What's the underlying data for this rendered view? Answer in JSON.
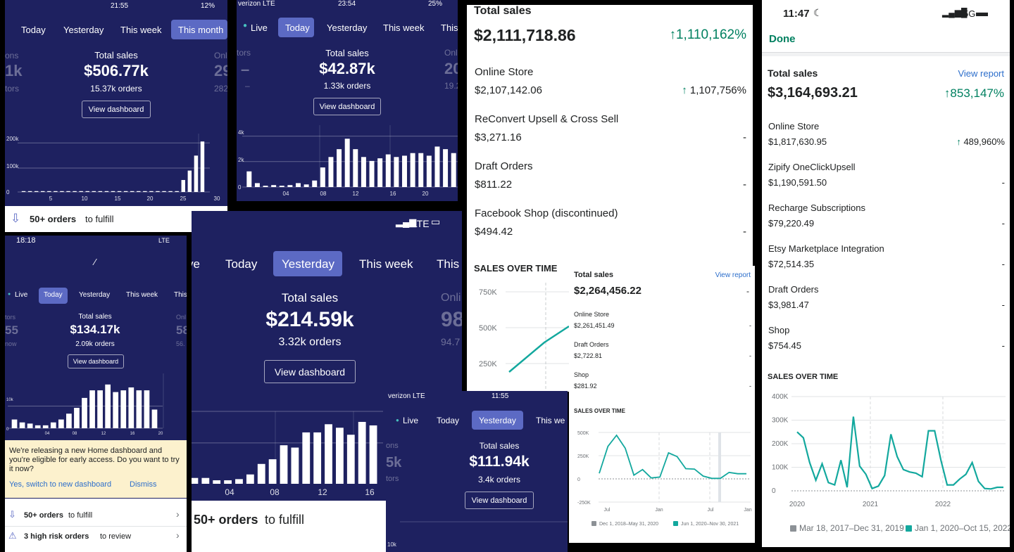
{
  "p1": {
    "status_time": "21:55",
    "status_battery": "12%",
    "tabs": [
      "Today",
      "Yesterday",
      "This week",
      "This month"
    ],
    "left_label": "ons",
    "left_value": "1k",
    "left_sub": "tors",
    "title": "Total sales",
    "value": "$506.77k",
    "orders": "15.37k orders",
    "right_label": "Onli",
    "right_value": "29",
    "right_sub": "282",
    "button": "View dashboard",
    "yticks": [
      "200k",
      "100k",
      "0"
    ],
    "xticks": [
      "5",
      "10",
      "15",
      "20",
      "25",
      "30"
    ],
    "bars_k": [
      0.4,
      0.4,
      0.4,
      0.4,
      0.4,
      0.4,
      0.4,
      0.4,
      0.4,
      0.4,
      0.4,
      0.4,
      0.4,
      0.4,
      0.4,
      0.4,
      0.4,
      0.4,
      0.4,
      0.4,
      0.4,
      0.4,
      0.4,
      0.4,
      2,
      28,
      50,
      85,
      118
    ],
    "fulfill_bold": "50+ orders",
    "fulfill_rest": "to fulfill"
  },
  "p2": {
    "status_carrier": "verizon  LTE",
    "status_time": "23:54",
    "status_battery": "25%",
    "tabs": [
      "Live",
      "Today",
      "Yesterday",
      "This week",
      "This"
    ],
    "left_label": "tors",
    "left_value": "–",
    "left_sub": "–",
    "title": "Total sales",
    "value": "$42.87k",
    "orders": "1.33k orders",
    "right_label": "Onl",
    "right_value": "20",
    "right_sub": "19.2",
    "button": "View dashboard",
    "yticks": [
      "4k",
      "2k",
      "0"
    ],
    "xticks": [
      "04",
      "08",
      "12",
      "16",
      "20"
    ],
    "bars": [
      1.2,
      0.3,
      0.1,
      0.15,
      0.1,
      0.15,
      0.3,
      0.2,
      0.5,
      1.5,
      2.3,
      2.9,
      3.7,
      2.9,
      2.3,
      2.0,
      2.2,
      2.5,
      2.3,
      2.4,
      2.6,
      2.6,
      2.4,
      3.1,
      2.9,
      2.6
    ]
  },
  "p3": {
    "status_time": "18:18",
    "status_net": "LTE",
    "tabs": [
      "Live",
      "Today",
      "Yesterday",
      "This week",
      "This"
    ],
    "left_label": "tors",
    "left_value": "55",
    "left_sub": "now",
    "title": "Total sales",
    "value": "$134.17k",
    "orders": "2.09k orders",
    "right_label": "Onl",
    "right_value": "58",
    "right_sub": "56.",
    "button": "View dashboard",
    "yticks": [
      "10k",
      "0"
    ],
    "xticks": [
      "04",
      "08",
      "12",
      "16",
      "20"
    ],
    "bars": [
      1.5,
      1,
      0.8,
      0.5,
      0.5,
      1,
      1.5,
      2.5,
      3.5,
      5.2,
      6.5,
      6.5,
      7.5,
      6.2,
      6.5,
      7,
      6.5,
      6.5,
      3.2
    ],
    "banner": "We're releasing a new Home dashboard and you're eligible for early access. Do you want to try it now?",
    "banner_yes": "Yes, switch to new dashboard",
    "banner_dismiss": "Dismiss",
    "fulfill_bold": "50+ orders",
    "fulfill_rest": "to fulfill",
    "risk_bold": "3 high risk orders",
    "risk_rest": "to review"
  },
  "p4": {
    "status_net": "LTE",
    "tabs": [
      "ve",
      "Today",
      "Yesterday",
      "This week",
      "This"
    ],
    "title": "Total sales",
    "value": "$214.59k",
    "orders": "3.32k orders",
    "right_label": "Onli",
    "right_value": "98",
    "right_sub": "94.7",
    "button": "View dashboard",
    "xticks": [
      "04",
      "08",
      "12",
      "16"
    ],
    "bars": [
      0.5,
      0.5,
      0.3,
      0.3,
      0.4,
      0.8,
      1.7,
      2.1,
      3.3,
      3.1,
      4.4,
      4.4,
      5.1,
      4.8,
      4.2,
      5.3,
      5.0
    ],
    "fulfill_bold": "50+ orders",
    "fulfill_rest": "to fulfill"
  },
  "p5": {
    "title": "Total sales",
    "value": "$2,111,718.86",
    "change": "1,110,162%",
    "rows": [
      {
        "name": "Online Store",
        "amount": "$2,107,142.06",
        "change": "1,107,756%"
      },
      {
        "name": "ReConvert Upsell & Cross Sell",
        "amount": "$3,271.16",
        "change": "-"
      },
      {
        "name": "Draft Orders",
        "amount": "$811.22",
        "change": "-"
      },
      {
        "name": "Facebook Shop (discontinued)",
        "amount": "$494.42",
        "change": "-"
      }
    ],
    "section": "SALES OVER TIME",
    "yticks": [
      "750K",
      "500K",
      "250K"
    ]
  },
  "p6": {
    "status_carrier": "verizon  LTE",
    "status_time": "11:55",
    "tabs": [
      "Live",
      "Today",
      "Yesterday",
      "This we"
    ],
    "left_label": "ons",
    "left_value": "5k",
    "left_sub": "tors",
    "title": "Total sales",
    "value": "$111.94k",
    "orders": "3.4k orders",
    "button": "View dashboard",
    "ytick": "10k"
  },
  "p7": {
    "title": "Total sales",
    "link": "View report",
    "value": "$2,264,456.22",
    "change": "-",
    "rows": [
      {
        "name": "Online Store",
        "amount": "$2,261,451.49",
        "change": "-"
      },
      {
        "name": "Draft Orders",
        "amount": "$2,722.81",
        "change": "-"
      },
      {
        "name": "Shop",
        "amount": "$281.92",
        "change": "-"
      }
    ],
    "section": "SALES OVER TIME",
    "yticks": [
      "500K",
      "250K",
      "0",
      "-250K"
    ],
    "xticks": [
      "Jul",
      "Jan",
      "Jul",
      "Jan"
    ],
    "legend_prev": "Dec 1, 2018–May 31, 2020",
    "legend_cur": "Jun 1, 2020–Nov 30, 2021",
    "color_prev": "#8c9196",
    "color_cur": "#13a89e",
    "series_k": [
      60,
      350,
      470,
      330,
      40,
      100,
      10,
      20,
      280,
      240,
      110,
      105,
      30,
      5,
      5,
      70,
      55,
      55
    ]
  },
  "p8": {
    "status_time": "11:47",
    "status_net": "5G",
    "done": "Done",
    "title": "Total sales",
    "link": "View report",
    "value": "$3,164,693.21",
    "change": "853,147%",
    "rows": [
      {
        "name": "Online Store",
        "amount": "$1,817,630.95",
        "change": "489,960%"
      },
      {
        "name": "Zipify OneClickUpsell",
        "amount": "$1,190,591.50",
        "change": "-"
      },
      {
        "name": "Recharge Subscriptions",
        "amount": "$79,220.49",
        "change": "-"
      },
      {
        "name": "Etsy Marketplace Integration",
        "amount": "$72,514.35",
        "change": "-"
      },
      {
        "name": "Draft Orders",
        "amount": "$3,981.47",
        "change": "-"
      },
      {
        "name": "Shop",
        "amount": "$754.45",
        "change": "-"
      }
    ],
    "section": "SALES OVER TIME",
    "yticks": [
      "400K",
      "300K",
      "200K",
      "100K",
      "0"
    ],
    "xticks": [
      "2020",
      "2021",
      "2022"
    ],
    "legend_prev": "Mar 18, 2017–Dec 31, 2019",
    "legend_cur": "Jan 1, 2020–Oct 15, 2022",
    "color_prev": "#8c9196",
    "color_cur": "#13a89e",
    "series_k": [
      250,
      225,
      120,
      45,
      115,
      35,
      25,
      130,
      15,
      315,
      105,
      70,
      10,
      20,
      65,
      240,
      145,
      90,
      80,
      75,
      60,
      255,
      255,
      130,
      25,
      25,
      50,
      70,
      120,
      40,
      10,
      8,
      15,
      15
    ]
  }
}
